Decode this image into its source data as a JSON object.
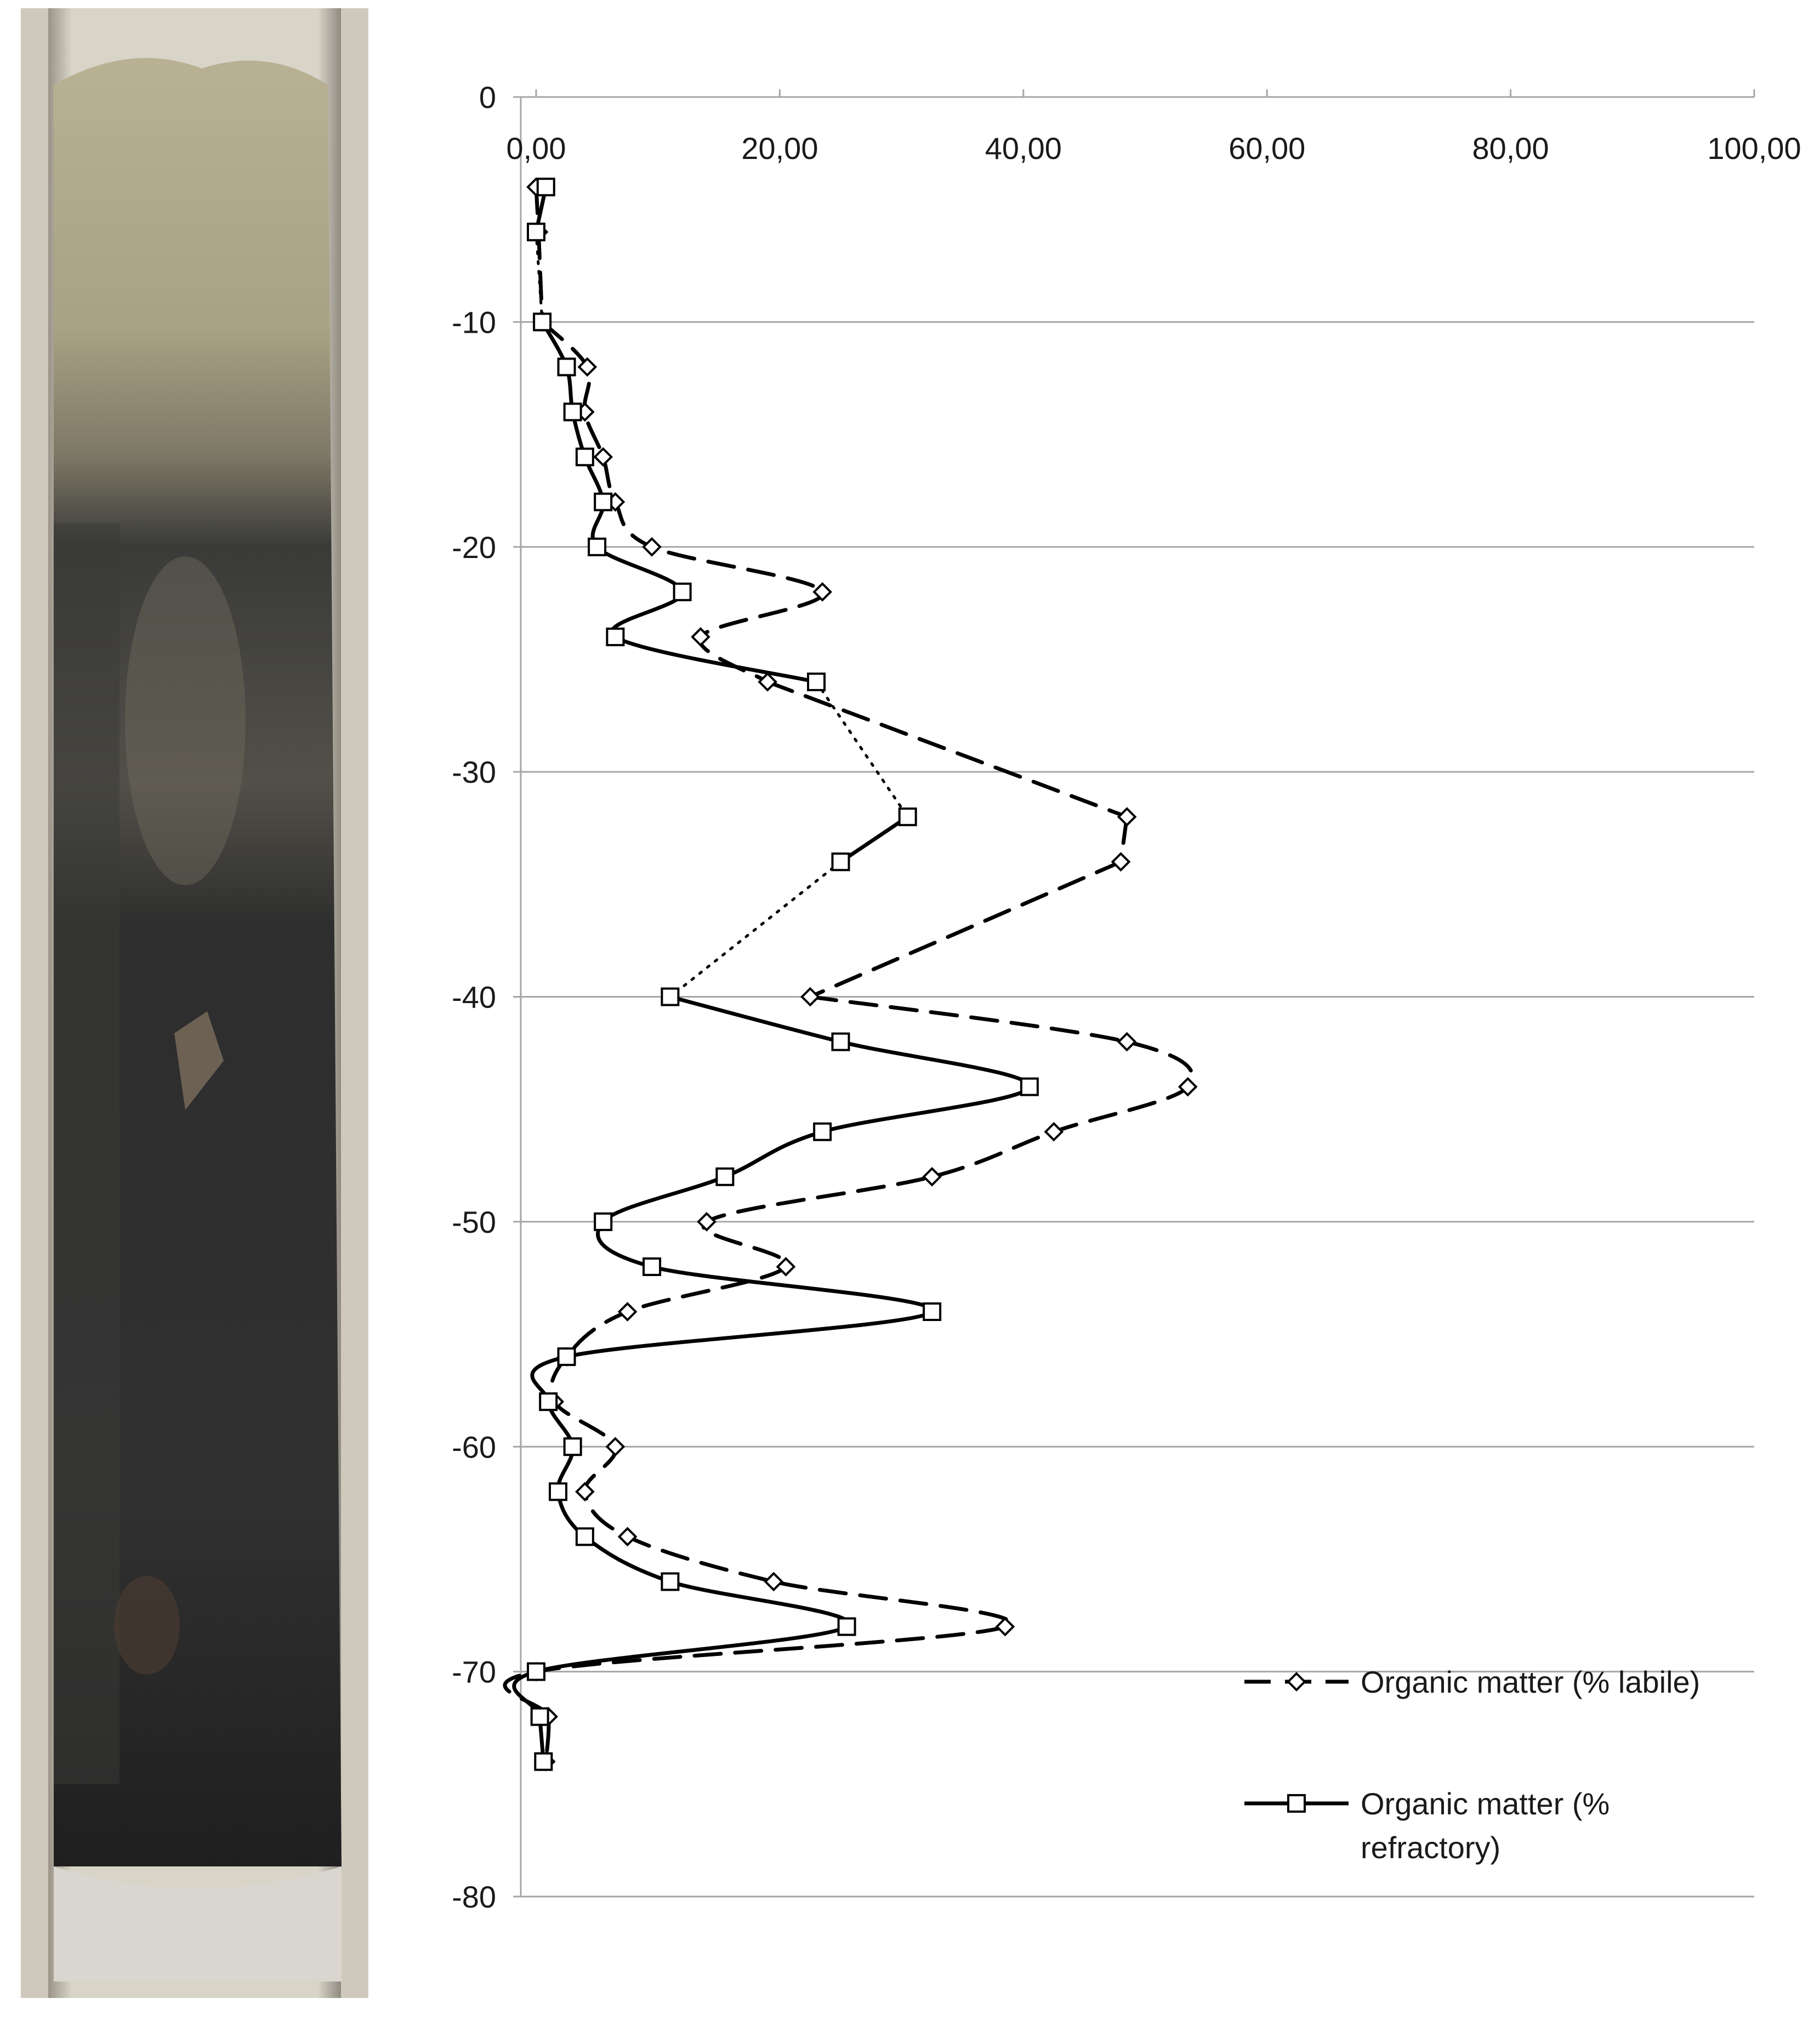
{
  "colors": {
    "line": "#000000",
    "grid": "#a6a6a6",
    "text": "#1a1a1a",
    "sediment_light": "#b3ab8a",
    "sediment_dark": "#2f2f2f"
  },
  "photo": {
    "description_icon": "sediment-core-photo"
  },
  "chart_data": {
    "type": "line",
    "title": "",
    "xlabel": "",
    "ylabel": "",
    "x_ticks": [
      "0,00",
      "20,00",
      "40,00",
      "60,00",
      "80,00",
      "100,00"
    ],
    "y_ticks": [
      "0",
      "-10",
      "-20",
      "-30",
      "-40",
      "-50",
      "-60",
      "-70",
      "-80"
    ],
    "xlim": [
      0,
      100
    ],
    "ylim": [
      -80,
      0
    ],
    "grid": "horizontal",
    "legend_position": "bottom-right",
    "series": [
      {
        "name": "Organic matter (% labile)",
        "marker": "diamond",
        "line_style": "dashed",
        "points": [
          [
            0.0,
            -4
          ],
          [
            0.2,
            -6
          ],
          [
            0.5,
            -10
          ],
          [
            4.2,
            -12
          ],
          [
            4.0,
            -14
          ],
          [
            5.5,
            -16
          ],
          [
            6.5,
            -18
          ],
          [
            9.5,
            -20
          ],
          [
            23.5,
            -22
          ],
          [
            13.5,
            -24
          ],
          [
            19.0,
            -26
          ],
          [
            48.5,
            -32
          ],
          [
            48.0,
            -34
          ],
          [
            22.5,
            -40
          ],
          [
            48.5,
            -42
          ],
          [
            53.5,
            -44
          ],
          [
            42.5,
            -46
          ],
          [
            32.5,
            -48
          ],
          [
            14.0,
            -50
          ],
          [
            20.5,
            -52
          ],
          [
            7.5,
            -54
          ],
          [
            2.5,
            -56
          ],
          [
            1.5,
            -58
          ],
          [
            6.5,
            -60
          ],
          [
            4.0,
            -62
          ],
          [
            7.5,
            -64
          ],
          [
            19.5,
            -66
          ],
          [
            38.5,
            -68
          ],
          [
            0.0,
            -70
          ],
          [
            1.0,
            -72
          ],
          [
            0.8,
            -74
          ]
        ]
      },
      {
        "name": "Organic matter (% refractory)",
        "marker": "square",
        "line_style": "solid",
        "points": [
          [
            0.8,
            -4
          ],
          [
            0.0,
            -6
          ],
          [
            0.5,
            -10
          ],
          [
            2.5,
            -12
          ],
          [
            3.0,
            -14
          ],
          [
            4.0,
            -16
          ],
          [
            5.5,
            -18
          ],
          [
            5.0,
            -20
          ],
          [
            12.0,
            -22
          ],
          [
            6.5,
            -24
          ],
          [
            23.0,
            -26
          ],
          [
            30.5,
            -32
          ],
          [
            25.0,
            -34
          ],
          [
            11.0,
            -40
          ],
          [
            25.0,
            -42
          ],
          [
            40.5,
            -44
          ],
          [
            23.5,
            -46
          ],
          [
            15.5,
            -48
          ],
          [
            5.5,
            -50
          ],
          [
            9.5,
            -52
          ],
          [
            32.5,
            -54
          ],
          [
            2.5,
            -56
          ],
          [
            1.0,
            -58
          ],
          [
            3.0,
            -60
          ],
          [
            1.8,
            -62
          ],
          [
            4.0,
            -64
          ],
          [
            11.0,
            -66
          ],
          [
            25.5,
            -68
          ],
          [
            0.0,
            -70
          ],
          [
            0.3,
            -72
          ],
          [
            0.6,
            -74
          ]
        ]
      }
    ]
  },
  "legend": {
    "items": [
      {
        "label_lines": [
          "Organic matter (% labile)"
        ]
      },
      {
        "label_lines": [
          "Organic matter (%",
          "refractory)"
        ]
      }
    ]
  }
}
